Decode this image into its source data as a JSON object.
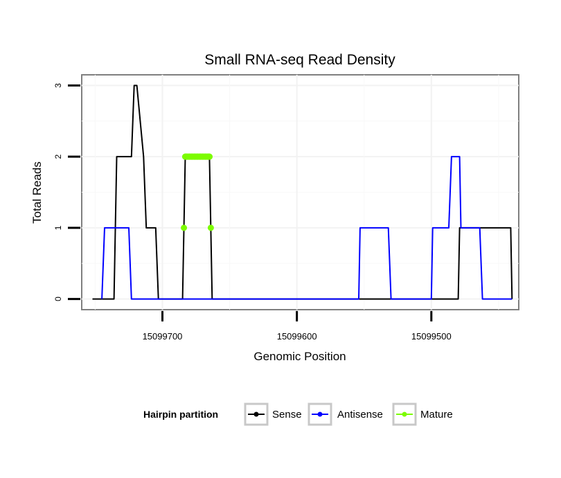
{
  "chart_data": {
    "type": "line",
    "title": "Small RNA-seq Read Density",
    "xlabel": "Genomic Position",
    "ylabel": "Total Reads",
    "xlim": [
      15099760,
      15099435
    ],
    "ylim": [
      -0.15,
      3.15
    ],
    "x_ticks": [
      15099700,
      15099600,
      15099500
    ],
    "x_tick_labels": [
      "15099700",
      "15099600",
      "15099500"
    ],
    "y_ticks": [
      0,
      1,
      2,
      3
    ],
    "y_tick_labels": [
      "0",
      "1",
      "2",
      "3"
    ],
    "grid": true,
    "legend": {
      "title": "Hairpin partition",
      "position": "bottom",
      "labels": [
        "Sense",
        "Antisense",
        "Mature"
      ]
    },
    "series": [
      {
        "name": "Sense",
        "color": "#000000",
        "x": [
          15099752,
          15099736,
          15099734,
          15099723,
          15099721,
          15099719,
          15099714,
          15099712,
          15099705,
          15099703,
          15099685,
          15099683,
          15099665,
          15099663,
          15099656,
          15099654,
          15099630,
          15099610,
          15099590,
          15099570,
          15099550,
          15099530,
          15099510,
          15099490,
          15099480,
          15099479,
          15099463,
          15099462,
          15099441,
          15099440
        ],
        "values": [
          0,
          0,
          2,
          2,
          3,
          3,
          2,
          1,
          1,
          0,
          0,
          2,
          2,
          0,
          0,
          0,
          0,
          0,
          0,
          0,
          0,
          0,
          0,
          0,
          0,
          1,
          1,
          1,
          1,
          0
        ]
      },
      {
        "name": "Antisense",
        "color": "#0000ff",
        "x": [
          15099745,
          15099743,
          15099725,
          15099723,
          15099656,
          15099554,
          15099553,
          15099532,
          15099530,
          15099500,
          15099499,
          15099487,
          15099485,
          15099479,
          15099478,
          15099464,
          15099462,
          15099458,
          15099440
        ],
        "values": [
          0,
          1,
          1,
          0,
          0,
          0,
          1,
          1,
          0,
          0,
          1,
          1,
          2,
          2,
          1,
          1,
          0,
          0,
          0
        ]
      },
      {
        "name": "Mature",
        "color": "#7cfc00",
        "points": [
          [
            15099684,
            1
          ],
          [
            15099683,
            2
          ],
          [
            15099682,
            2
          ],
          [
            15099680,
            2
          ],
          [
            15099678,
            2
          ],
          [
            15099676,
            2
          ],
          [
            15099674,
            2
          ],
          [
            15099672,
            2
          ],
          [
            15099670,
            2
          ],
          [
            15099668,
            2
          ],
          [
            15099666,
            2
          ],
          [
            15099665,
            2
          ],
          [
            15099664,
            1
          ]
        ]
      }
    ]
  }
}
